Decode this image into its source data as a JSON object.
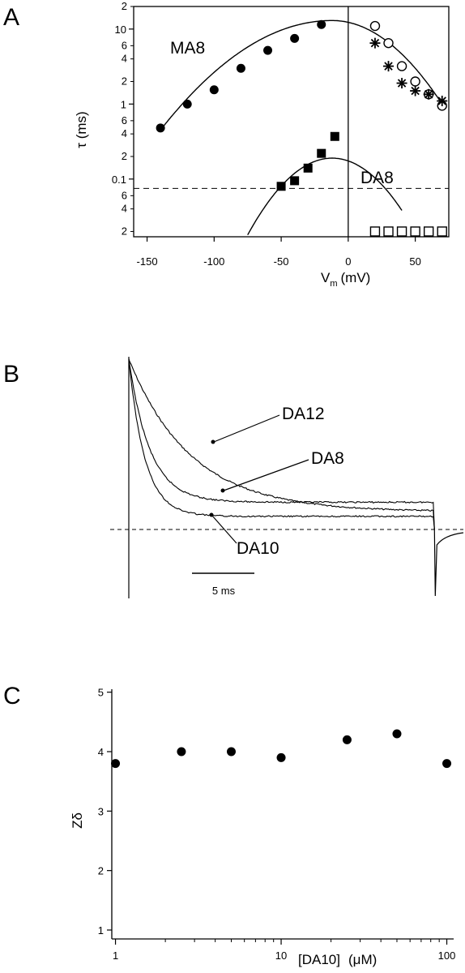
{
  "panels": {
    "a": "A",
    "b": "B",
    "c": "C"
  },
  "chart_data": [
    {
      "type": "scatter",
      "panel": "A",
      "xlabel": "V",
      "xlabel_sub": "m",
      "xlabel_unit": "(mV)",
      "ylabel": "τ (ms)",
      "xlim": [
        -160,
        75
      ],
      "ylim": [
        0.017,
        20
      ],
      "y_scale": "log",
      "x_ticks": [
        -150,
        -100,
        -50,
        0,
        50
      ],
      "y_major_ticks": [
        {
          "value": 0.1,
          "label": "0.1"
        },
        {
          "value": 1,
          "label": "1"
        },
        {
          "value": 10,
          "label": "10"
        }
      ],
      "y_minor_ticks": [
        {
          "value": 0.02,
          "label": "2"
        },
        {
          "value": 0.04,
          "label": "4"
        },
        {
          "value": 0.06,
          "label": "6"
        },
        {
          "value": 0.2,
          "label": "2"
        },
        {
          "value": 0.4,
          "label": "4"
        },
        {
          "value": 0.6,
          "label": "6"
        },
        {
          "value": 2,
          "label": "2"
        },
        {
          "value": 4,
          "label": "4"
        },
        {
          "value": 6,
          "label": "6"
        },
        {
          "value": 20,
          "label": "2"
        }
      ],
      "reference_lines": {
        "vertical_x": 0,
        "dashed_y": 0.075
      },
      "series": [
        {
          "name": "MA8",
          "marker": "filled-circle",
          "x": [
            -140,
            -120,
            -100,
            -80,
            -60,
            -40,
            -20
          ],
          "y": [
            0.48,
            1.0,
            1.55,
            3.0,
            5.2,
            7.5,
            11.5
          ]
        },
        {
          "marker": "open-circle",
          "x": [
            20,
            30,
            40,
            50,
            60,
            70
          ],
          "y": [
            11.0,
            6.5,
            3.2,
            2.0,
            1.35,
            0.95
          ]
        },
        {
          "marker": "asterisk",
          "x": [
            20,
            30,
            40,
            50,
            60,
            70
          ],
          "y": [
            6.5,
            3.2,
            1.9,
            1.5,
            1.35,
            1.1
          ]
        },
        {
          "name": "DA8",
          "marker": "filled-square",
          "x": [
            -50,
            -40,
            -30,
            -20,
            -10
          ],
          "y": [
            0.08,
            0.095,
            0.14,
            0.22,
            0.37
          ]
        },
        {
          "marker": "open-square",
          "x": [
            20,
            30,
            40,
            50,
            60,
            70
          ],
          "y": [
            0.02,
            0.02,
            0.02,
            0.02,
            0.02,
            0.02
          ]
        }
      ],
      "fits": [
        {
          "series": "MA8",
          "peak_x": -12,
          "peak_y": 13,
          "ref_x": -140,
          "ref_y": 0.45
        },
        {
          "series": "DA8",
          "x_start": -75,
          "peak_x": -12,
          "peak_y": 0.19,
          "ref_x": -75,
          "ref_y": 0.018
        }
      ],
      "series_labels": [
        "MA8",
        "DA8"
      ]
    },
    {
      "type": "line",
      "panel": "B",
      "traces": [
        {
          "name": "DA12",
          "peak": 1.0,
          "baseline": 0.104,
          "tau_ms": 5.0
        },
        {
          "name": "DA8",
          "peak": 1.0,
          "baseline": 0.16,
          "tau_ms": 1.7
        },
        {
          "name": "DA10",
          "peak": 1.0,
          "baseline": 0.077,
          "tau_ms": 1.3
        }
      ],
      "pulse_ms": 0.9,
      "step_end_ms": 24.5,
      "zero_current_dashed": true,
      "scale_bar": {
        "value_ms": 5,
        "label": "5 ms"
      }
    },
    {
      "type": "scatter",
      "panel": "C",
      "xlabel": "[DA10]",
      "xlabel_unit": "(μM)",
      "ylabel": "Zδ",
      "x_scale": "log",
      "xlim": [
        0.95,
        110
      ],
      "ylim": [
        0.85,
        5.05
      ],
      "x_ticks": [
        1,
        10,
        100
      ],
      "x_tick_labels": [
        "1",
        "10",
        "100"
      ],
      "y_ticks": [
        1,
        2,
        3,
        4,
        5
      ],
      "x": [
        1,
        2.5,
        5,
        10,
        25,
        50,
        100
      ],
      "y": [
        3.8,
        4.0,
        4.0,
        3.9,
        4.2,
        4.3,
        3.8
      ]
    }
  ]
}
